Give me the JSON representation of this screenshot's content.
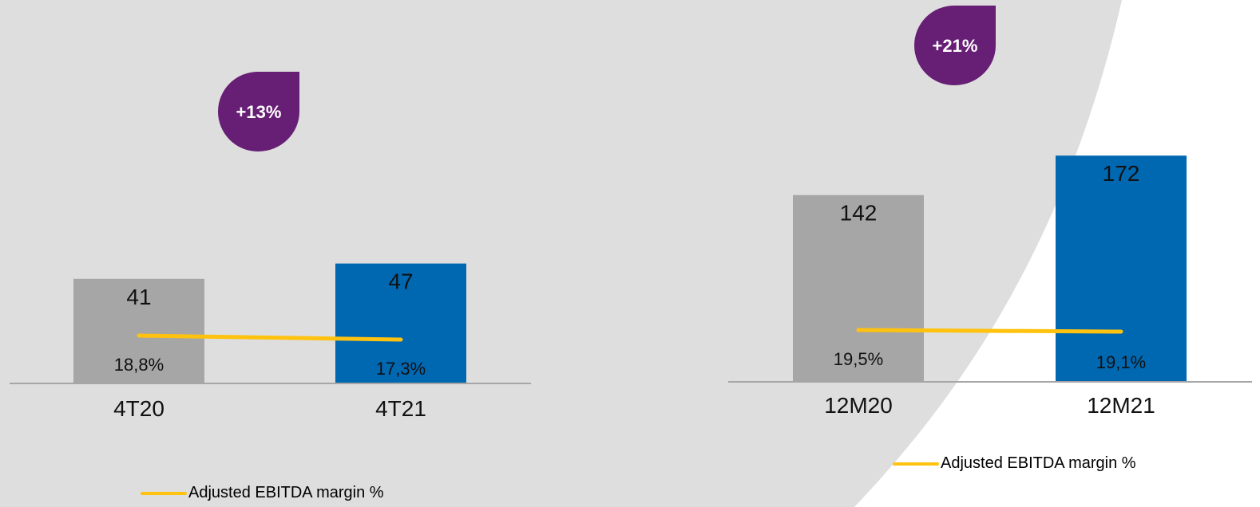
{
  "colors": {
    "background_shape": "#dedede",
    "bar_prior": "#a6a6a6",
    "bar_current": "#0067b1",
    "margin_line": "#ffc20e",
    "badge": "#671e75",
    "axis": "#a6a6a6"
  },
  "chart_data": [
    {
      "type": "bar",
      "categories": [
        "4T20",
        "4T21"
      ],
      "values": [
        41,
        47
      ],
      "value_labels": [
        "41",
        "47"
      ],
      "ylim": [
        0,
        180
      ],
      "growth_badge": "+13%",
      "line_series": {
        "name": "Adjusted EBITDA margin %",
        "values": [
          18.8,
          17.3
        ],
        "labels": [
          "18,8%",
          "17,3%"
        ]
      },
      "legend": "Adjusted EBITDA margin %"
    },
    {
      "type": "bar",
      "categories": [
        "12M20",
        "12M21"
      ],
      "values": [
        142,
        172
      ],
      "value_labels": [
        "142",
        "172"
      ],
      "ylim": [
        0,
        180
      ],
      "growth_badge": "+21%",
      "line_series": {
        "name": "Adjusted EBITDA margin %",
        "values": [
          19.5,
          19.1
        ],
        "labels": [
          "19,5%",
          "19,1%"
        ]
      },
      "legend": "Adjusted EBITDA margin %"
    }
  ]
}
